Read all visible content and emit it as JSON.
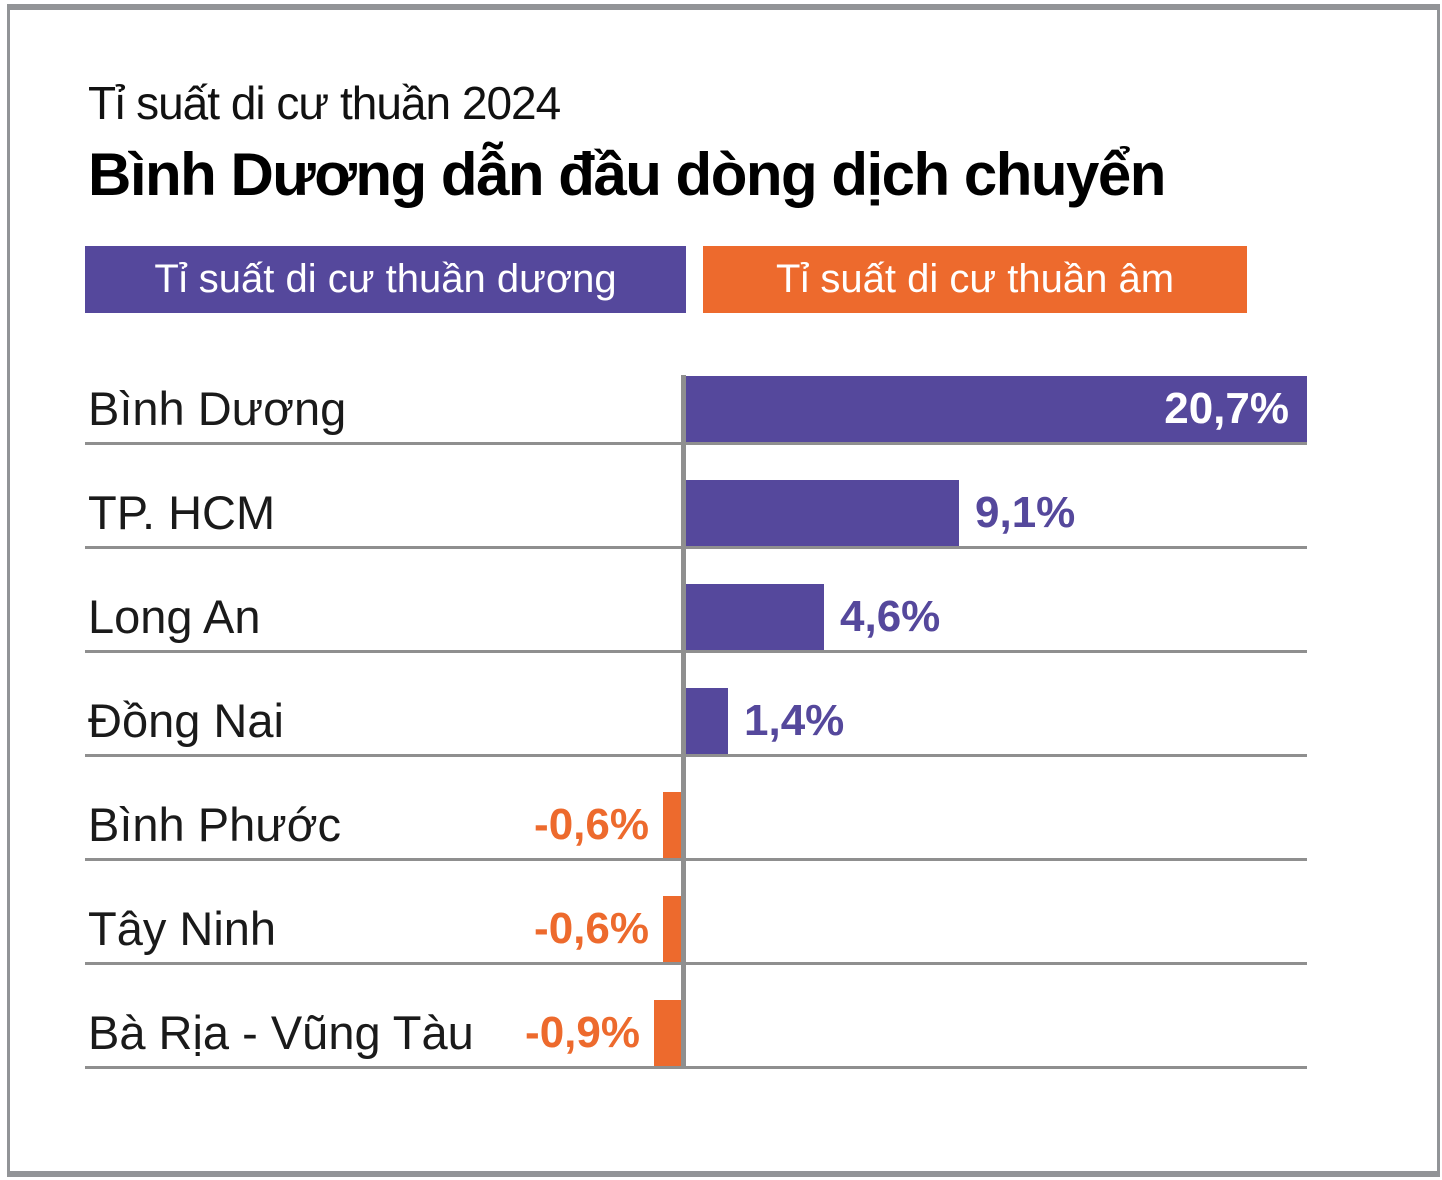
{
  "header": {
    "subtitle": "Tỉ suất di cư thuần 2024",
    "title": "Bình Dương dẫn đầu dòng dịch chuyển"
  },
  "legend": {
    "positive": {
      "label": "Tỉ suất di cư thuần dương",
      "color": "#55489c"
    },
    "negative": {
      "label": "Tỉ suất di cư thuần âm",
      "color": "#ed6a2d"
    }
  },
  "chart_data": {
    "type": "bar",
    "orientation": "horizontal",
    "title": "Bình Dương dẫn đầu dòng dịch chuyển",
    "subtitle": "Tỉ suất di cư thuần 2024",
    "unit": "%",
    "categories": [
      "Bình Dương",
      "TP. HCM",
      "Long An",
      "Đồng Nai",
      "Bình Phước",
      "Tây Ninh",
      "Bà Rịa - Vũng Tàu"
    ],
    "values": [
      20.7,
      9.1,
      4.6,
      1.4,
      -0.6,
      -0.6,
      -0.9
    ],
    "value_labels": [
      "20,7%",
      "9,1%",
      "4,6%",
      "1,4%",
      "-0,6%",
      "-0,6%",
      "-0,9%"
    ],
    "value_label_position": [
      "inside",
      "outside",
      "outside",
      "outside",
      "outside",
      "outside",
      "outside"
    ],
    "positive_color": "#55489c",
    "negative_color": "#ed6a2d",
    "gridline_color": "#8f8f8f",
    "legend_position": "top",
    "grid": "row-separators-and-zero-axis"
  }
}
